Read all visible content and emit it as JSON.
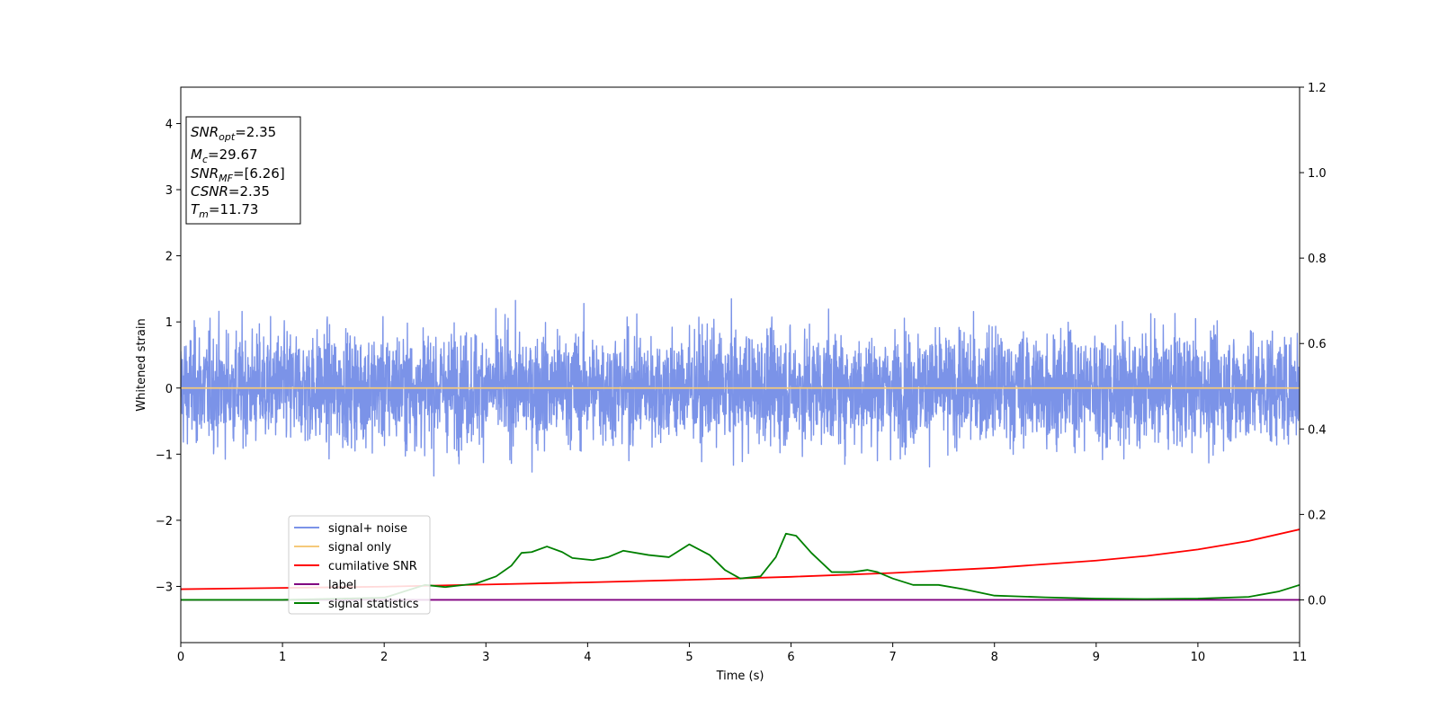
{
  "chart_data": {
    "type": "line",
    "xlabel": "Time (s)",
    "ylabel": "Whitened strain",
    "xlim": [
      0,
      11
    ],
    "ylim": [
      -3.85,
      4.55
    ],
    "ylim_right": [
      -0.1,
      1.2
    ],
    "x_ticks": [
      0,
      1,
      2,
      3,
      4,
      5,
      6,
      7,
      8,
      9,
      10,
      11
    ],
    "y_ticks": [
      -3,
      -2,
      -1,
      0,
      1,
      2,
      3,
      4
    ],
    "y_ticks_right": [
      0.0,
      0.2,
      0.4,
      0.6,
      0.8,
      1.0,
      1.2
    ],
    "legend_position": "lower-left",
    "grid": false,
    "annotation": [
      {
        "name": "SNR",
        "sub": "opt",
        "value": "=2.35"
      },
      {
        "name": "M",
        "sub": "c",
        "value": "=29.67"
      },
      {
        "name": "SNR",
        "sub": "MF",
        "value": "=[6.26]"
      },
      {
        "name": "CSNR",
        "sub": "",
        "value": "=2.35"
      },
      {
        "name": "T",
        "sub": "m",
        "value": "=11.73"
      }
    ],
    "series": [
      {
        "name": "signal+ noise",
        "axis": "left",
        "color": "#7b93e8",
        "kind": "noise",
        "amplitude_range": [
          -1.58,
          1.65
        ]
      },
      {
        "name": "signal only",
        "axis": "left",
        "color": "#f5c97a",
        "x": [
          0,
          11
        ],
        "y": [
          0,
          0
        ]
      },
      {
        "name": "cumilative SNR",
        "axis": "right",
        "color": "#ff0000",
        "x": [
          0,
          1,
          2,
          3,
          4,
          5,
          6,
          7,
          8,
          9,
          9.5,
          10,
          10.5,
          11
        ],
        "y": [
          0.025,
          0.028,
          0.031,
          0.036,
          0.041,
          0.047,
          0.054,
          0.063,
          0.075,
          0.092,
          0.103,
          0.118,
          0.138,
          0.165
        ]
      },
      {
        "name": "label",
        "axis": "right",
        "color": "#800080",
        "x": [
          0,
          11
        ],
        "y": [
          0.0,
          0.0
        ]
      },
      {
        "name": "signal statistics",
        "axis": "right",
        "color": "#008000",
        "x": [
          0,
          1,
          2,
          2.4,
          2.6,
          2.9,
          3.1,
          3.25,
          3.35,
          3.45,
          3.6,
          3.75,
          3.85,
          4.05,
          4.2,
          4.35,
          4.6,
          4.8,
          5.0,
          5.2,
          5.35,
          5.5,
          5.7,
          5.85,
          5.95,
          6.05,
          6.2,
          6.4,
          6.6,
          6.75,
          6.85,
          7.0,
          7.2,
          7.45,
          7.7,
          8.0,
          8.5,
          9.0,
          9.5,
          10.0,
          10.5,
          10.8,
          11
        ],
        "y": [
          0.0,
          0.0,
          0.005,
          0.035,
          0.03,
          0.038,
          0.055,
          0.08,
          0.11,
          0.112,
          0.125,
          0.112,
          0.098,
          0.093,
          0.1,
          0.115,
          0.105,
          0.1,
          0.13,
          0.105,
          0.07,
          0.05,
          0.055,
          0.1,
          0.155,
          0.15,
          0.11,
          0.065,
          0.065,
          0.07,
          0.065,
          0.05,
          0.035,
          0.035,
          0.025,
          0.01,
          0.006,
          0.003,
          0.002,
          0.003,
          0.007,
          0.02,
          0.035
        ]
      }
    ]
  }
}
